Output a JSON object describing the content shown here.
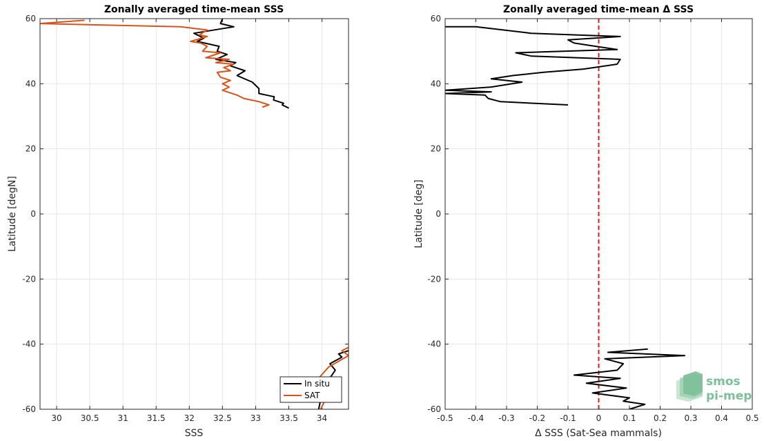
{
  "chart_data": [
    {
      "type": "line",
      "title": "Zonally averaged time-mean SSS",
      "xlabel": "SSS",
      "ylabel": "Latitude [degN]",
      "xlim": [
        29.75,
        34.4
      ],
      "ylim": [
        -60,
        60
      ],
      "xticks": [
        30,
        30.5,
        31,
        31.5,
        32,
        32.5,
        33,
        33.5,
        34
      ],
      "yticks": [
        60,
        40,
        20,
        0,
        -20,
        -40,
        -60
      ],
      "grid": true,
      "legend_position": "bottom-right",
      "series": [
        {
          "name": "In situ",
          "color": "#000000",
          "segments": [
            [
              [
                32.5,
                60
              ],
              [
                32.47,
                58.5
              ],
              [
                32.67,
                57.5
              ],
              [
                32.07,
                55.5
              ],
              [
                32.22,
                54
              ],
              [
                32.12,
                53
              ],
              [
                32.45,
                51.5
              ],
              [
                32.42,
                50
              ],
              [
                32.57,
                49
              ],
              [
                32.4,
                47.5
              ],
              [
                32.7,
                46.5
              ],
              [
                32.62,
                45.5
              ],
              [
                32.84,
                44
              ],
              [
                32.72,
                42.5
              ],
              [
                32.95,
                40.5
              ],
              [
                33.05,
                38.5
              ],
              [
                33.05,
                37
              ],
              [
                33.28,
                36
              ],
              [
                33.27,
                35
              ],
              [
                33.42,
                34
              ],
              [
                33.4,
                33.5
              ],
              [
                33.5,
                32.5
              ]
            ],
            [
              [
                33.95,
                -60
              ],
              [
                33.97,
                -58
              ],
              [
                34.0,
                -55
              ],
              [
                34.1,
                -51
              ],
              [
                34.2,
                -48
              ],
              [
                34.12,
                -46
              ],
              [
                34.3,
                -44
              ],
              [
                34.25,
                -43
              ],
              [
                34.4,
                -42
              ]
            ]
          ]
        },
        {
          "name": "SAT",
          "color": "#d95319",
          "segments": [
            [
              [
                30.42,
                59.5
              ],
              [
                29.75,
                58.5
              ],
              [
                31.87,
                57.5
              ],
              [
                32.27,
                56.5
              ],
              [
                32.15,
                55
              ],
              [
                32.27,
                54.5
              ],
              [
                32.02,
                53
              ],
              [
                32.17,
                52.5
              ],
              [
                32.27,
                51.5
              ],
              [
                32.2,
                50
              ],
              [
                32.47,
                49.5
              ],
              [
                32.25,
                48
              ],
              [
                32.6,
                47.5
              ],
              [
                32.4,
                46.5
              ],
              [
                32.67,
                46
              ],
              [
                32.52,
                45
              ],
              [
                32.62,
                44
              ],
              [
                32.42,
                43.5
              ],
              [
                32.47,
                42
              ],
              [
                32.62,
                41
              ],
              [
                32.5,
                40
              ],
              [
                32.6,
                39
              ],
              [
                32.5,
                38
              ],
              [
                32.72,
                36.5
              ],
              [
                32.82,
                35.5
              ],
              [
                33.05,
                34.5
              ],
              [
                33.2,
                33.5
              ],
              [
                33.1,
                32.8
              ]
            ],
            [
              [
                33.98,
                -60
              ],
              [
                34.05,
                -57
              ],
              [
                33.97,
                -50
              ],
              [
                34.1,
                -47
              ],
              [
                34.4,
                -43.5
              ],
              [
                34.3,
                -42
              ],
              [
                34.4,
                -41
              ]
            ]
          ]
        }
      ]
    },
    {
      "type": "line",
      "title": "Zonally averaged time-mean Δ SSS",
      "xlabel": "Δ SSS (Sat-Sea mammals)",
      "ylabel": "Latitude [deg]",
      "xlim": [
        -0.5,
        0.5
      ],
      "ylim": [
        -60,
        60
      ],
      "xticks": [
        -0.5,
        -0.4,
        -0.3,
        -0.2,
        -0.1,
        0,
        0.1,
        0.2,
        0.3,
        0.4,
        0.5
      ],
      "yticks": [
        60,
        40,
        20,
        0,
        -20,
        -40,
        -60
      ],
      "grid": true,
      "reference_line": {
        "x": 0,
        "color": "#e01a1a",
        "style": "dashed"
      },
      "series": [
        {
          "name": "",
          "color": "#000000",
          "segments": [
            [
              [
                -0.5,
                57.5
              ],
              [
                -0.4,
                57.5
              ],
              [
                -0.22,
                55.5
              ],
              [
                0.07,
                54.5
              ],
              [
                -0.1,
                53.5
              ],
              [
                -0.08,
                52.5
              ],
              [
                -0.01,
                51.5
              ],
              [
                0.06,
                50.5
              ],
              [
                -0.27,
                49.5
              ],
              [
                -0.22,
                48.5
              ],
              [
                0.07,
                47.5
              ],
              [
                0.06,
                46
              ],
              [
                -0.05,
                44.5
              ],
              [
                -0.18,
                43.5
              ],
              [
                -0.28,
                42.5
              ],
              [
                -0.35,
                41.5
              ],
              [
                -0.25,
                40.5
              ],
              [
                -0.35,
                39
              ],
              [
                -0.5,
                38
              ],
              [
                -0.35,
                37.5
              ],
              [
                -0.5,
                37
              ],
              [
                -0.37,
                36.5
              ],
              [
                -0.36,
                35.5
              ],
              [
                -0.32,
                34.5
              ],
              [
                -0.1,
                33.5
              ]
            ],
            [
              [
                0.16,
                -41.5
              ],
              [
                0.03,
                -42.5
              ],
              [
                0.28,
                -43.5
              ],
              [
                0.02,
                -44.5
              ],
              [
                0.08,
                -46
              ],
              [
                0.06,
                -48
              ],
              [
                -0.08,
                -49.5
              ],
              [
                0.07,
                -50.5
              ],
              [
                -0.04,
                -52
              ],
              [
                0.09,
                -53.5
              ],
              [
                -0.02,
                -55
              ],
              [
                0.1,
                -56.5
              ],
              [
                0.08,
                -57.5
              ],
              [
                0.15,
                -58.5
              ],
              [
                0.1,
                -60
              ]
            ]
          ]
        }
      ]
    }
  ],
  "logo": {
    "line1": "smos",
    "line2": "pi-mep",
    "colors": [
      "#7dbf98",
      "#9fd1b2",
      "#bfe2cb"
    ]
  }
}
